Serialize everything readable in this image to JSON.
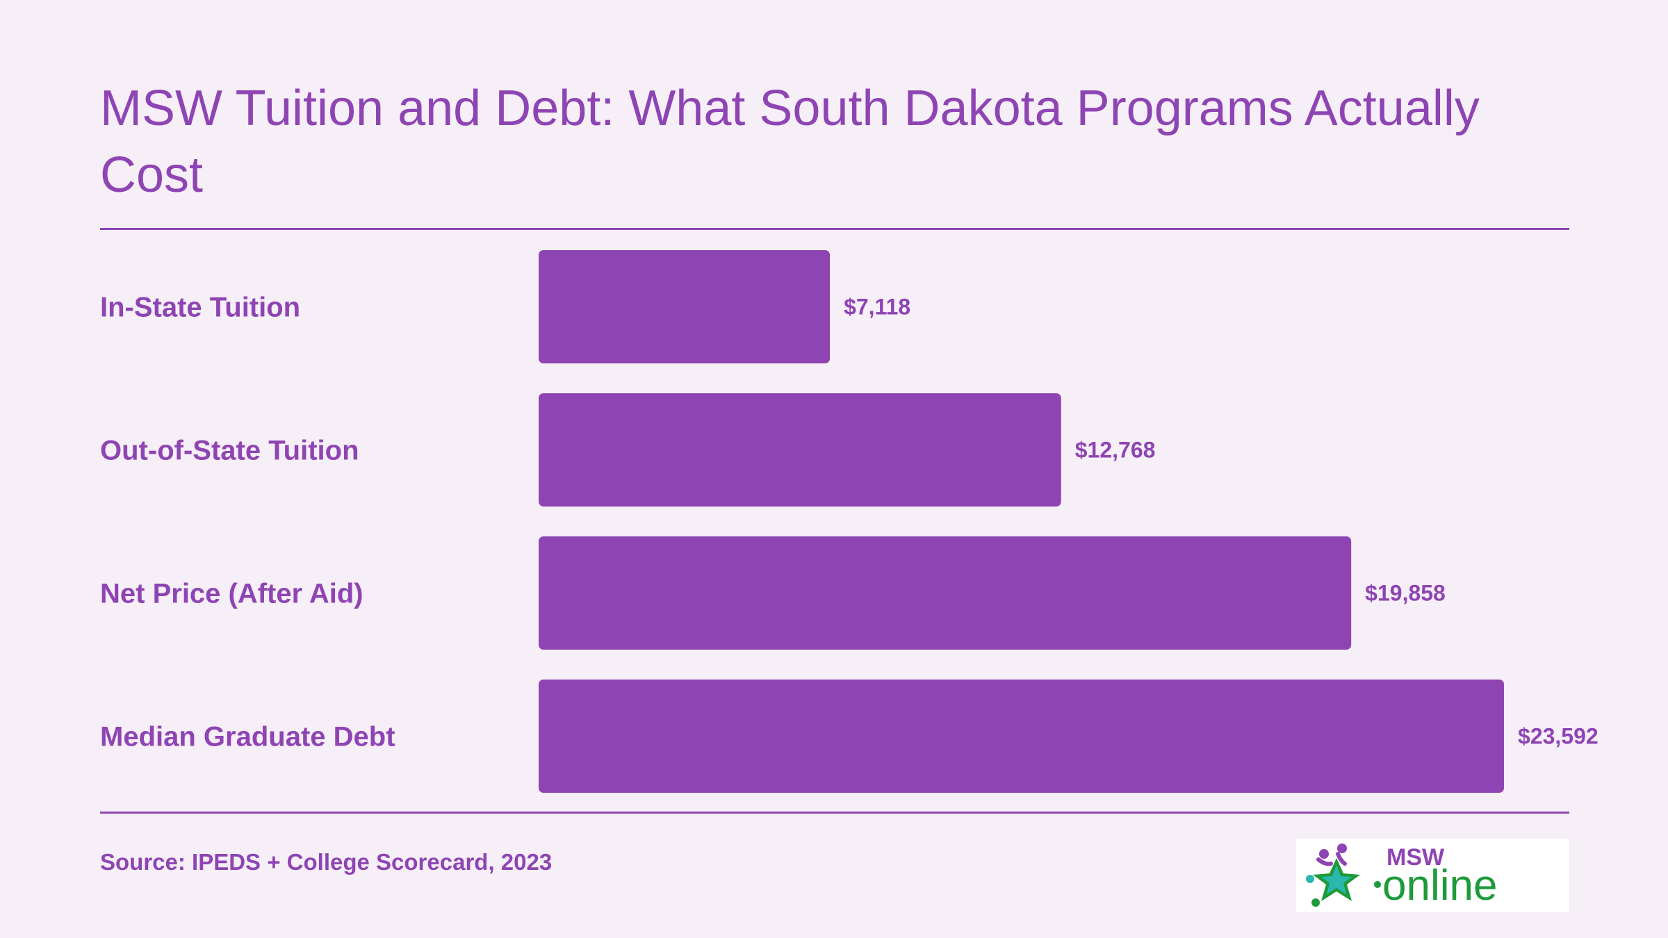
{
  "title": "MSW Tuition and Debt: What South Dakota Programs Actually Cost",
  "source": "Source: IPEDS + College Scorecard, 2023",
  "logo": {
    "text_top": "MSW",
    "text_bottom": "online"
  },
  "colors": {
    "background": "#f6eff7",
    "accent": "#8e44b3",
    "logo_green": "#1e9a3a"
  },
  "chart_data": {
    "type": "bar",
    "orientation": "horizontal",
    "categories": [
      "In-State Tuition",
      "Out-of-State Tuition",
      "Net Price (After Aid)",
      "Median Graduate Debt"
    ],
    "values": [
      7118,
      12768,
      19858,
      23592
    ],
    "value_labels": [
      "$7,118",
      "$12,768",
      "$19,858",
      "$23,592"
    ],
    "xlim": [
      0,
      27600
    ],
    "grid": false,
    "legend": "none"
  }
}
